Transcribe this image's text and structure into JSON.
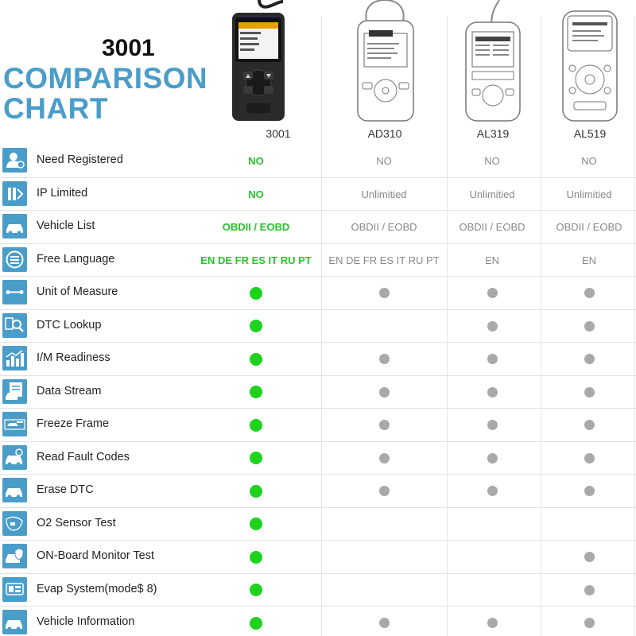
{
  "header": {
    "model": "3001",
    "title_line1": "COMPARISON",
    "title_line2": "CHART"
  },
  "devices": [
    {
      "label": "3001",
      "icon": "obd-scanner-3001-icon"
    },
    {
      "label": "AD310",
      "icon": "obd-scanner-ad310-icon"
    },
    {
      "label": "AL319",
      "icon": "obd-scanner-al319-icon"
    },
    {
      "label": "AL519",
      "icon": "obd-scanner-al519-icon"
    }
  ],
  "colors": {
    "accent": "#4a9dc9",
    "highlight": "#27c42a",
    "dot_yes": "#1ed21e",
    "dot_other": "#a9a9a9"
  },
  "rows": [
    {
      "icon": "user-icon",
      "feature": "Need Registered",
      "values": [
        "NO",
        "NO",
        "NO",
        "NO"
      ]
    },
    {
      "icon": "ip-icon",
      "feature": "IP Limited",
      "values": [
        "NO",
        "Unlimitied",
        "Unlimitied",
        "Unlimitied"
      ]
    },
    {
      "icon": "car-icon",
      "feature": "Vehicle List",
      "values": [
        "OBDII / EOBD",
        "OBDII / EOBD",
        "OBDII / EOBD",
        "OBDII / EOBD"
      ]
    },
    {
      "icon": "language-icon",
      "feature": "Free Language",
      "values": [
        "EN DE FR ES IT RU PT",
        "EN DE FR ES IT RU PT",
        "EN",
        "EN"
      ]
    },
    {
      "icon": "measure-icon",
      "feature": "Unit of Measure",
      "values": [
        "dot",
        "dot",
        "dot",
        "dot"
      ]
    },
    {
      "icon": "magnifier-icon",
      "feature": "DTC Lookup",
      "values": [
        "dot",
        "",
        "dot",
        "dot"
      ]
    },
    {
      "icon": "bar-chart-icon",
      "feature": "I/M Readiness",
      "values": [
        "dot",
        "dot",
        "dot",
        "dot"
      ]
    },
    {
      "icon": "data-stream-icon",
      "feature": "Data Stream",
      "values": [
        "dot",
        "dot",
        "dot",
        "dot"
      ]
    },
    {
      "icon": "freeze-frame-icon",
      "feature": "Freeze Frame",
      "values": [
        "dot",
        "dot",
        "dot",
        "dot"
      ]
    },
    {
      "icon": "car-search-icon",
      "feature": "Read Fault Codes",
      "values": [
        "dot",
        "dot",
        "dot",
        "dot"
      ]
    },
    {
      "icon": "car-erase-icon",
      "feature": "Erase DTC",
      "values": [
        "dot",
        "dot",
        "dot",
        "dot"
      ]
    },
    {
      "icon": "o2-sensor-icon",
      "feature": "O2 Sensor Test",
      "values": [
        "dot",
        "",
        "",
        ""
      ]
    },
    {
      "icon": "car-shield-icon",
      "feature": "ON-Board Monitor Test",
      "values": [
        "dot",
        "",
        "",
        "dot"
      ]
    },
    {
      "icon": "evap-icon",
      "feature": "Evap System(mode$ 8)",
      "values": [
        "dot",
        "",
        "",
        "dot"
      ]
    },
    {
      "icon": "car-info-icon",
      "feature": "Vehicle Information",
      "values": [
        "dot",
        "dot",
        "dot",
        "dot"
      ]
    }
  ]
}
